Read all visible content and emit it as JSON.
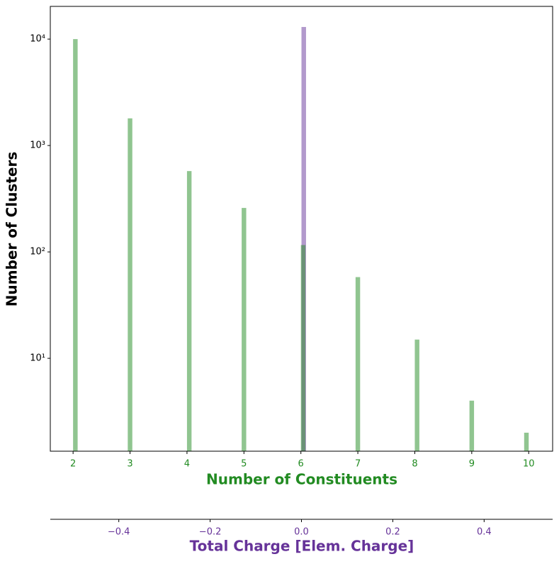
{
  "chart_data": {
    "type": "histogram",
    "ylabel": "Number of Clusters",
    "xlabel": "Number of Constituents",
    "x2label": "Total Charge [Elem. Charge]",
    "ylog": true,
    "ylim": [
      1.34,
      20300
    ],
    "yticks": [
      {
        "value": 10,
        "label": "10¹"
      },
      {
        "value": 100,
        "label": "10²"
      },
      {
        "value": 1000,
        "label": "10³"
      },
      {
        "value": 10000,
        "label": "10⁴"
      }
    ],
    "xlim": [
      1.6,
      10.42
    ],
    "xticks": [
      2,
      3,
      4,
      5,
      6,
      7,
      8,
      9,
      10
    ],
    "x2lim": [
      -0.55,
      0.55
    ],
    "x2ticks": [
      {
        "value": -0.4,
        "label": "−0.4"
      },
      {
        "value": -0.2,
        "label": "−0.2"
      },
      {
        "value": 0,
        "label": "0.0"
      },
      0.2,
      0.4
    ],
    "series": [
      {
        "color": "#663399",
        "axis": "x2",
        "bins": [
          0,
          0.01
        ],
        "values": [
          13000
        ]
      },
      {
        "color": "#228b22",
        "axis": "x",
        "bins": [
          2,
          2.08,
          2.96,
          3.04,
          4,
          4.08,
          4.96,
          5.04,
          6,
          6.08,
          6.96,
          7.04,
          8,
          8.08,
          8.96,
          9.04,
          9.92,
          10
        ],
        "values": [
          10000,
          0,
          1800,
          0,
          575,
          0,
          259,
          0,
          116,
          0,
          58,
          0,
          15,
          0,
          4,
          0,
          2
        ]
      }
    ]
  }
}
